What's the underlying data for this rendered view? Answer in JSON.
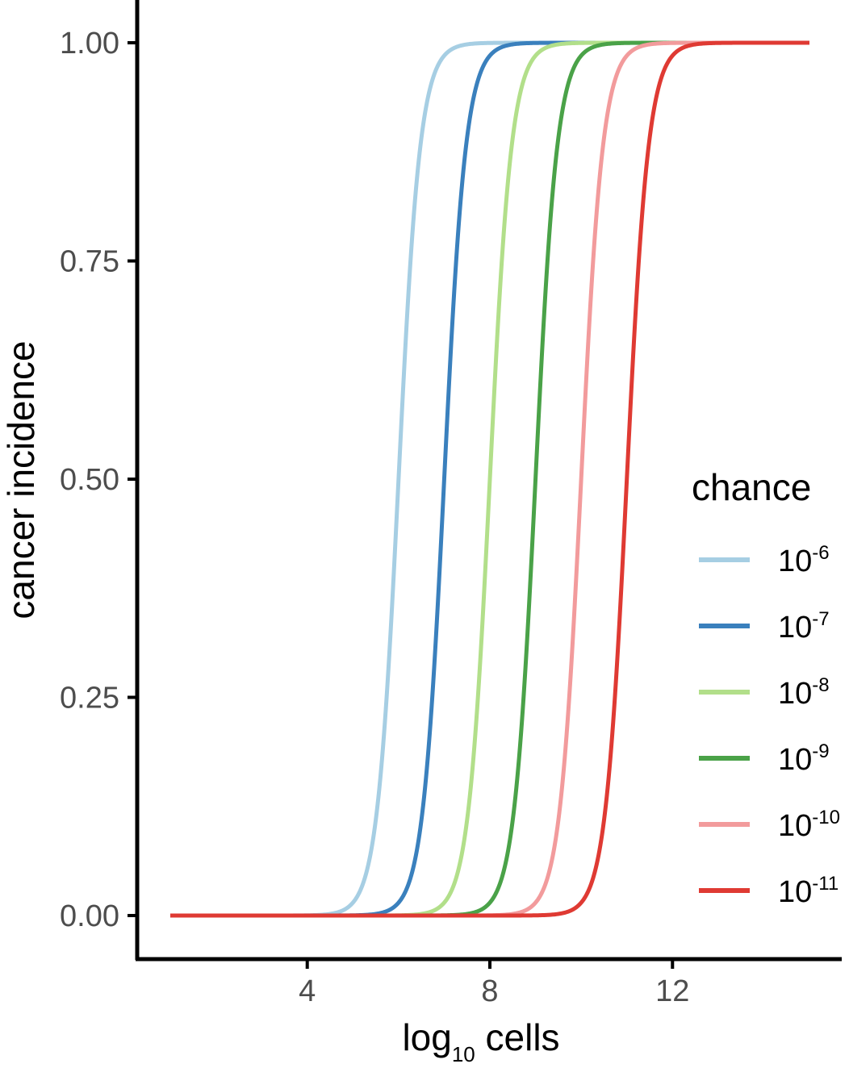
{
  "chart_data": {
    "type": "line",
    "title": "",
    "xlabel_base": "log",
    "xlabel_sub": "10",
    "xlabel_rest": " cells",
    "ylabel": "cancer incidence",
    "xlim": [
      1,
      15
    ],
    "ylim": [
      0,
      1
    ],
    "xticks": [
      4,
      8,
      12
    ],
    "yticks": [
      0,
      0.25,
      0.5,
      0.75,
      1
    ],
    "ytick_labels": [
      "0.00",
      "0.25",
      "0.50",
      "0.75",
      "1.00"
    ],
    "grid": false,
    "legend": {
      "title": "chance",
      "placement": "right"
    },
    "series": [
      {
        "base": "10",
        "exp": "-6",
        "color": "#a6cee3",
        "midpoint": 6.0,
        "steepness": 4.2
      },
      {
        "base": "10",
        "exp": "-7",
        "color": "#3a80bd",
        "midpoint": 7.0,
        "steepness": 4.2
      },
      {
        "base": "10",
        "exp": "-8",
        "color": "#b2df8a",
        "midpoint": 8.0,
        "steepness": 4.2
      },
      {
        "base": "10",
        "exp": "-9",
        "color": "#4aa248",
        "midpoint": 9.0,
        "steepness": 4.2
      },
      {
        "base": "10",
        "exp": "-10",
        "color": "#f29b9c",
        "midpoint": 10.0,
        "steepness": 4.2
      },
      {
        "base": "10",
        "exp": "-11",
        "color": "#df3a33",
        "midpoint": 11.0,
        "steepness": 4.2
      }
    ]
  }
}
